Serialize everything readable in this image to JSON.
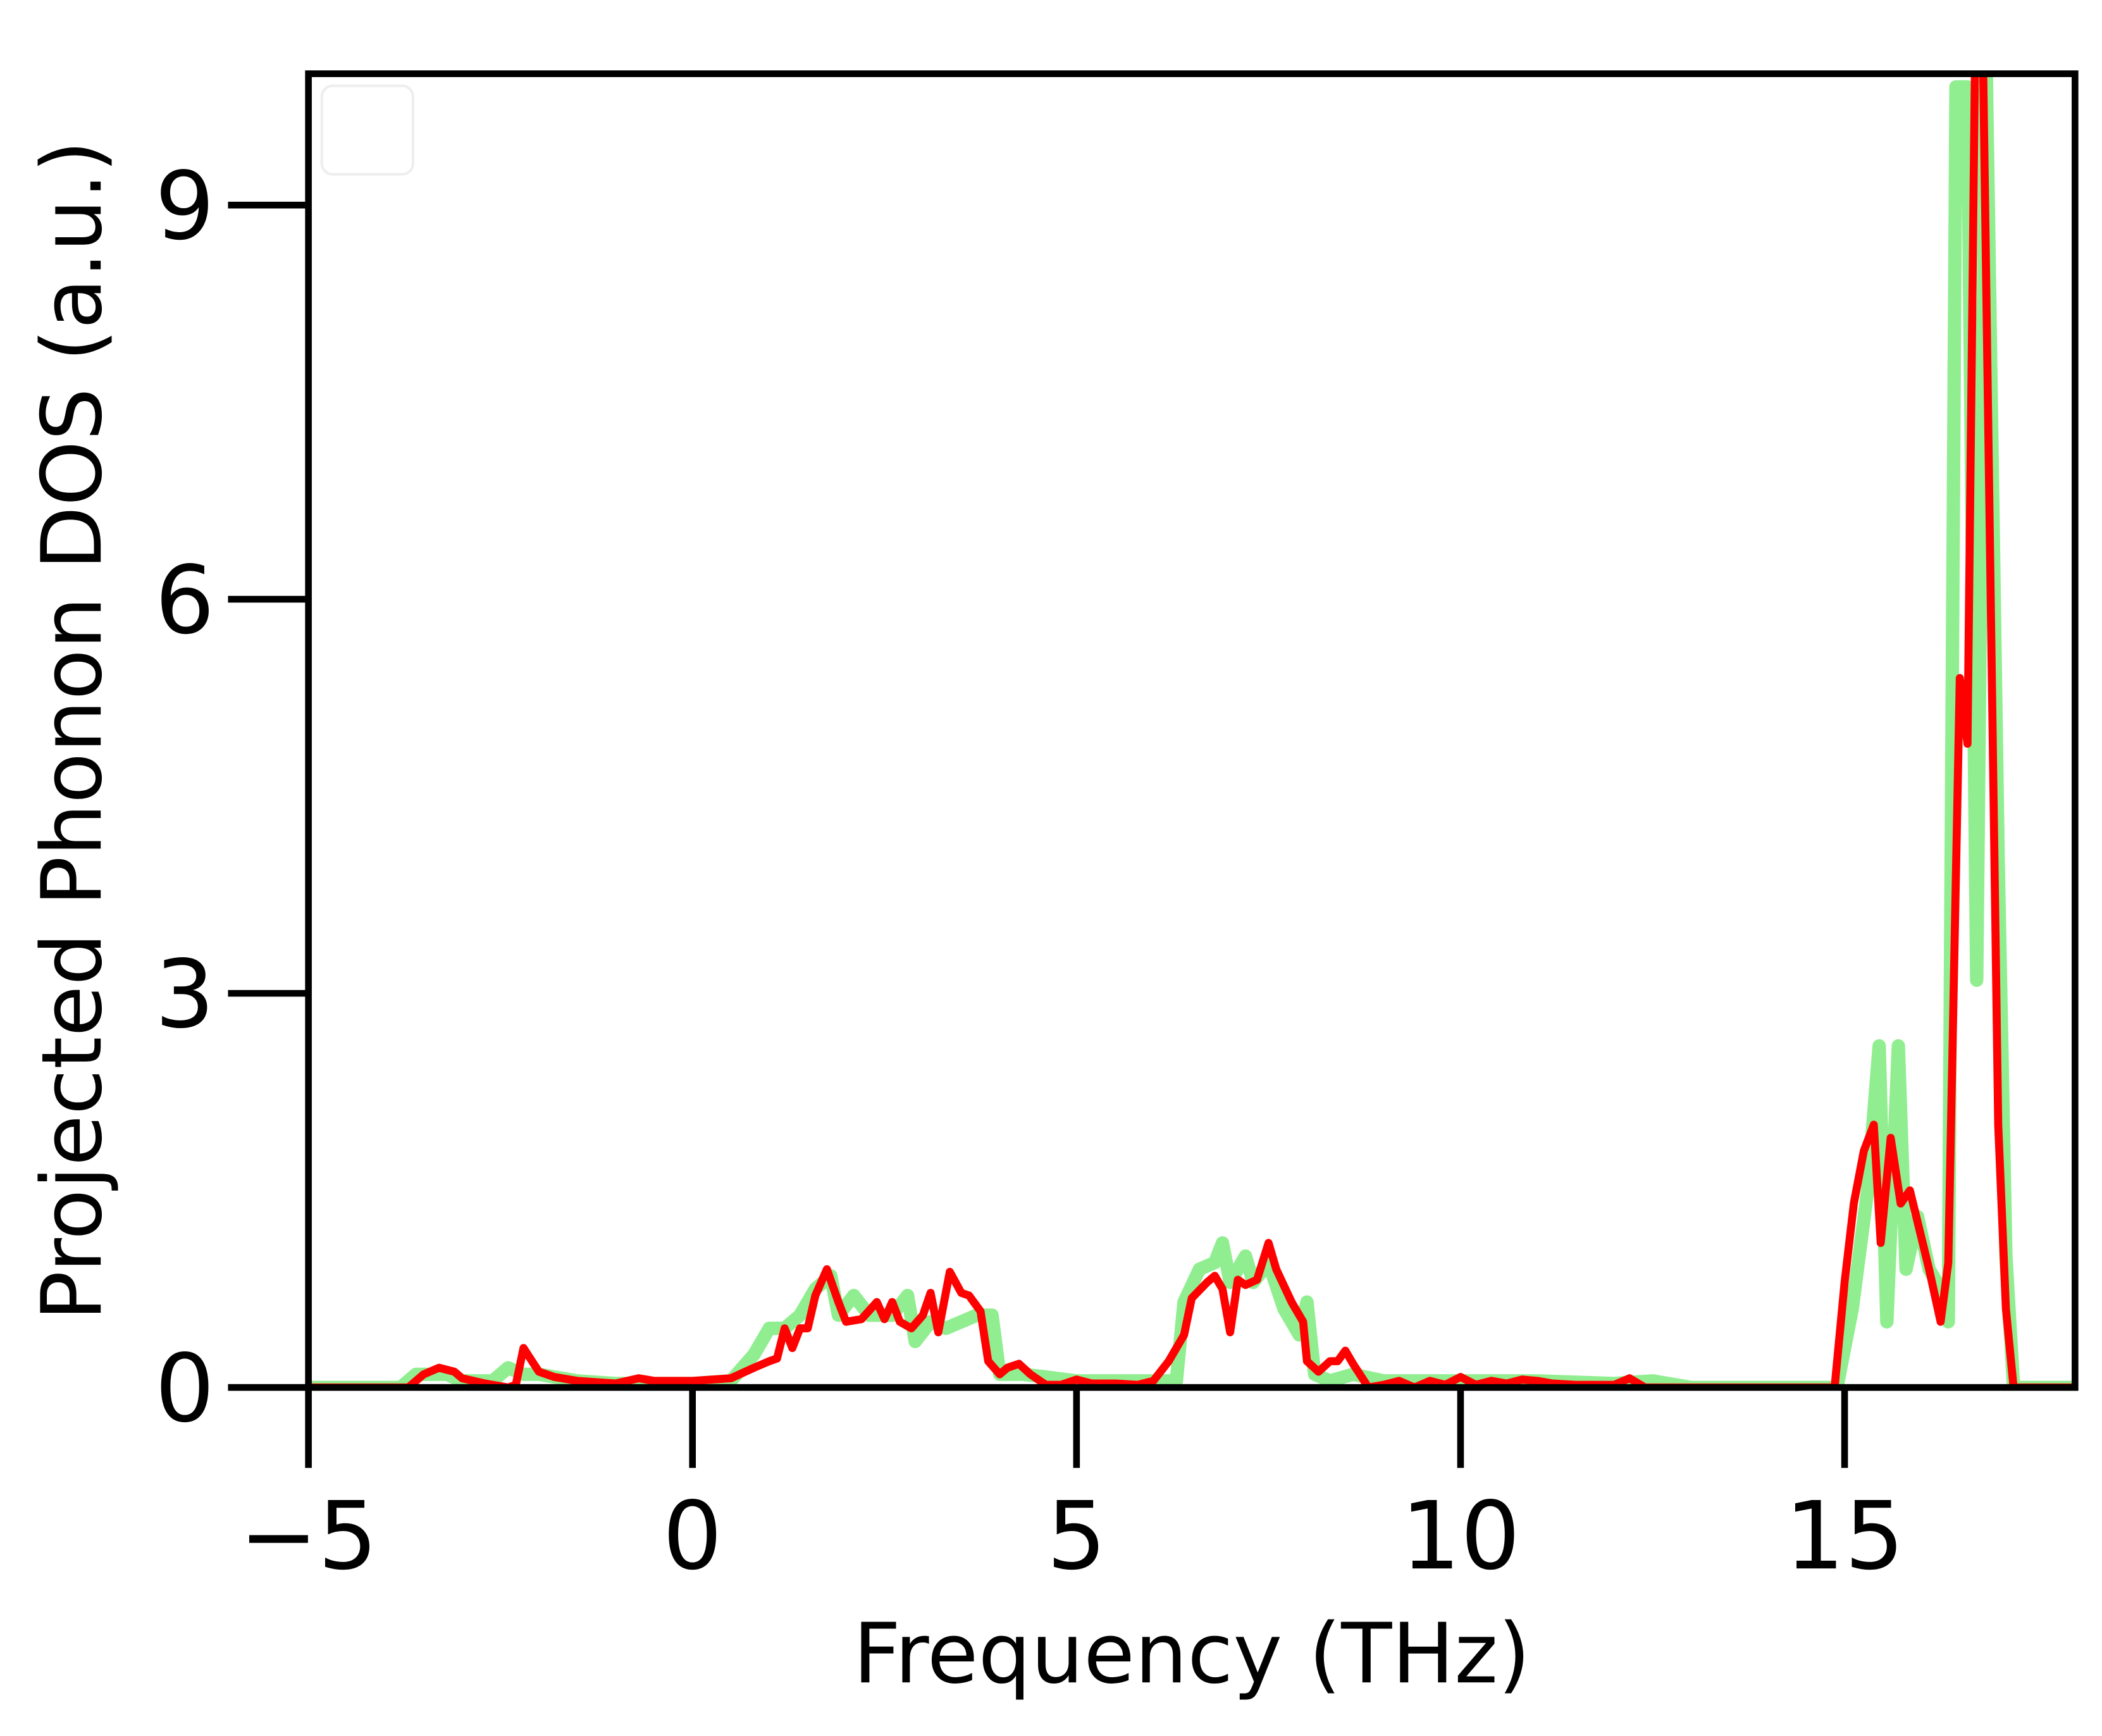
{
  "chart_data": {
    "type": "line",
    "x_label": "Frequency (THz)",
    "y_label": "Projected Phonon DOS (a.u.)",
    "xlim": [
      -5,
      18
    ],
    "ylim": [
      0,
      10
    ],
    "xticks": [
      {
        "value": -5,
        "label": "−5"
      },
      0,
      5,
      10,
      15
    ],
    "yticks": [
      0,
      3,
      6,
      9
    ],
    "legend": "upper left",
    "series": [
      {
        "color": "#90ee90",
        "width": 10,
        "x": [
          -5,
          -3.8,
          -3.6,
          -3.2,
          -3,
          -2.6,
          -2.4,
          -2.2,
          -2,
          -1.5,
          -1,
          0,
          0.5,
          0.8,
          1,
          1.2,
          1.4,
          1.6,
          1.8,
          1.9,
          2.1,
          2.3,
          2.6,
          2.8,
          2.9,
          3.1,
          3.3,
          3.5,
          3.7,
          3.9,
          4,
          4.3,
          4.6,
          5,
          5.5,
          6,
          6.3,
          6.4,
          6.6,
          6.8,
          6.9,
          7,
          7.2,
          7.3,
          7.5,
          7.7,
          7.9,
          8,
          8.1,
          8.3,
          8.6,
          9,
          10,
          11,
          12,
          12.5,
          13,
          14.9,
          15.1,
          15.3,
          15.45,
          15.55,
          15.7,
          15.8,
          15.95,
          16.1,
          16.2,
          16.35,
          16.45,
          16.6,
          16.72,
          16.84,
          17,
          17.1,
          17.2,
          18
        ],
        "values": [
          0,
          0,
          0.1,
          0.1,
          0.05,
          0.05,
          0.15,
          0.1,
          0.1,
          0.05,
          0.03,
          0.03,
          0.05,
          0.25,
          0.45,
          0.45,
          0.55,
          0.75,
          0.85,
          0.55,
          0.7,
          0.55,
          0.55,
          0.7,
          0.35,
          0.5,
          0.45,
          0.5,
          0.55,
          0.55,
          0.1,
          0.1,
          0.08,
          0.05,
          0.05,
          0.05,
          0.05,
          0.65,
          0.9,
          0.95,
          1.1,
          0.8,
          1.0,
          0.8,
          0.95,
          0.6,
          0.4,
          0.65,
          0.1,
          0.05,
          0.1,
          0.05,
          0.05,
          0.05,
          0.03,
          0.05,
          0,
          0,
          0.6,
          1.5,
          2.6,
          0.5,
          2.6,
          0.9,
          1.3,
          0.9,
          0.8,
          0.5,
          9.9,
          9.9,
          3.1,
          10.2,
          4,
          1,
          0,
          0
        ]
      },
      {
        "color": "#ff0000",
        "width": 6,
        "x": [
          -5,
          -3.7,
          -3.5,
          -3.3,
          -3.1,
          -3,
          -2.7,
          -2.4,
          -2.3,
          -2.2,
          -2,
          -1.8,
          -1.5,
          -1,
          -0.7,
          -0.5,
          0,
          0.5,
          0.8,
          1,
          1.1,
          1.2,
          1.3,
          1.4,
          1.5,
          1.6,
          1.75,
          1.9,
          2,
          2.2,
          2.4,
          2.5,
          2.6,
          2.7,
          2.85,
          3,
          3.1,
          3.2,
          3.35,
          3.5,
          3.6,
          3.75,
          3.85,
          4,
          4.1,
          4.25,
          4.4,
          4.6,
          4.8,
          5,
          5.2,
          5.5,
          5.8,
          6,
          6.2,
          6.4,
          6.5,
          6.7,
          6.8,
          6.9,
          7,
          7.1,
          7.2,
          7.35,
          7.5,
          7.6,
          7.8,
          7.95,
          8,
          8.15,
          8.3,
          8.4,
          8.5,
          8.6,
          8.8,
          9,
          9.2,
          9.4,
          9.6,
          9.8,
          10,
          10.2,
          10.4,
          10.6,
          10.8,
          11,
          11.2,
          11.5,
          12,
          12.2,
          12.4,
          13,
          14,
          14.87,
          15,
          15.12,
          15.25,
          15.38,
          15.47,
          15.6,
          15.73,
          15.85,
          16.1,
          16.25,
          16.35,
          16.5,
          16.6,
          16.7,
          16.8,
          17,
          17.1,
          17.2,
          18
        ],
        "values": [
          0,
          0,
          0.1,
          0.15,
          0.12,
          0.07,
          0.03,
          0,
          0.02,
          0.3,
          0.12,
          0.08,
          0.05,
          0.03,
          0.07,
          0.05,
          0.05,
          0.07,
          0.15,
          0.2,
          0.22,
          0.45,
          0.3,
          0.45,
          0.45,
          0.7,
          0.9,
          0.65,
          0.5,
          0.52,
          0.65,
          0.52,
          0.65,
          0.5,
          0.45,
          0.55,
          0.72,
          0.42,
          0.88,
          0.72,
          0.7,
          0.58,
          0.2,
          0.1,
          0.15,
          0.18,
          0.1,
          0.02,
          0.02,
          0.06,
          0.03,
          0.03,
          0.02,
          0.05,
          0.2,
          0.4,
          0.68,
          0.8,
          0.85,
          0.75,
          0.42,
          0.82,
          0.78,
          0.82,
          1.1,
          0.9,
          0.65,
          0.5,
          0.2,
          0.12,
          0.2,
          0.2,
          0.28,
          0.18,
          0,
          0.02,
          0.05,
          0,
          0.05,
          0.02,
          0.08,
          0.02,
          0.05,
          0.03,
          0.06,
          0.05,
          0.03,
          0.02,
          0.02,
          0.07,
          0,
          0,
          0,
          0,
          0.8,
          1.4,
          1.8,
          2,
          1.1,
          1.9,
          1.4,
          1.5,
          0.9,
          0.5,
          0.95,
          5.4,
          4.9,
          10.2,
          10.2,
          2,
          0.6,
          0,
          0
        ]
      }
    ]
  }
}
